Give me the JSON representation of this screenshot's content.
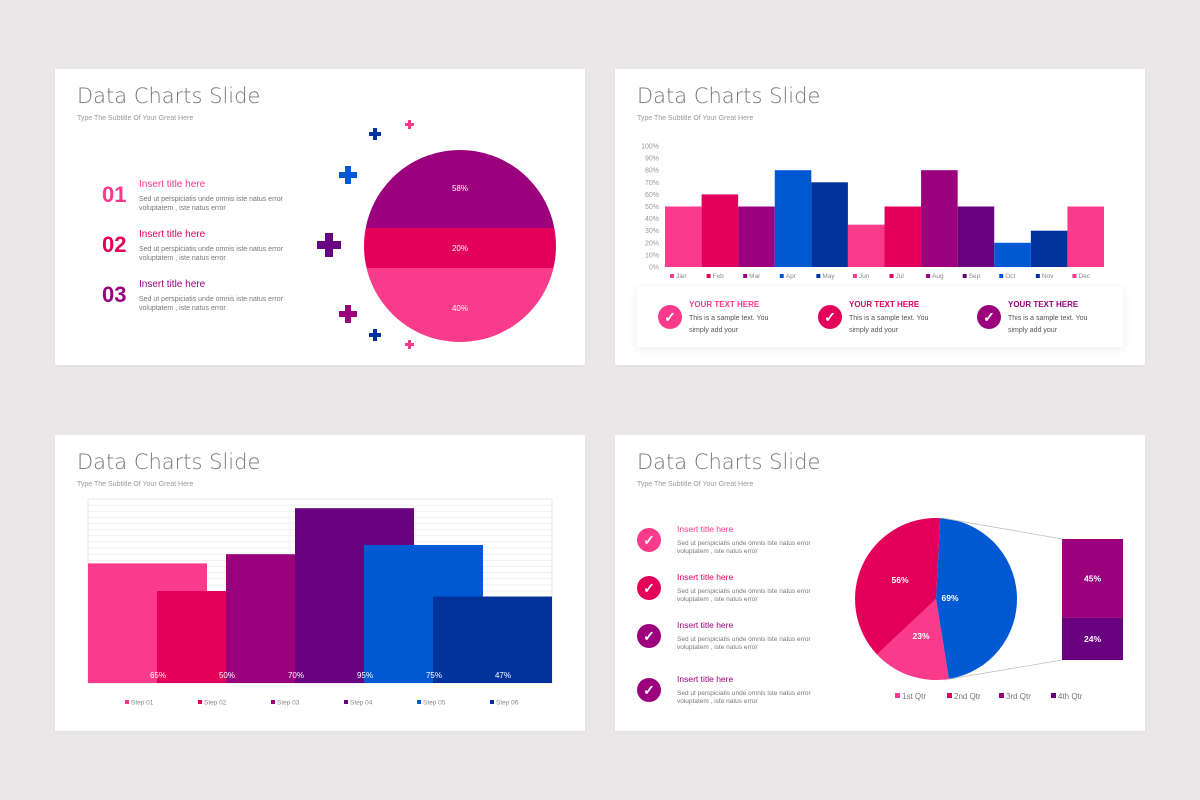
{
  "colors": {
    "pink": "#fa3a8a",
    "red": "#e2005a",
    "purple": "#9b007d",
    "darkpurple": "#68007f",
    "blue": "#0059d2",
    "navy": "#00339c"
  },
  "slides": [
    {
      "title": "Data Charts Slide",
      "subtitle": "Type The Subtitle Of Your Great Here",
      "items": [
        {
          "num": "01",
          "title": "Insert title here",
          "desc": "Sed ut perspiciatis unde omnis iste natus error voluptatem , iste natus error"
        },
        {
          "num": "02",
          "title": "Insert title here",
          "desc": "Sed ut perspiciatis unde omnis iste natus error voluptatem , iste natus error"
        },
        {
          "num": "03",
          "title": "Insert title here",
          "desc": "Sed ut perspiciatis unde omnis iste natus error voluptatem , iste natus error"
        }
      ],
      "decor_icons": [
        "plus-icon"
      ]
    },
    {
      "title": "Data Charts Slide",
      "subtitle": "Type The Subtitle Of Your Great Here",
      "cards": [
        {
          "title": "YOUR TEXT HERE",
          "text": "This is a sample text. You simply add your"
        },
        {
          "title": "YOUR TEXT HERE",
          "text": "This is a sample text. You simply add your"
        },
        {
          "title": "YOUR TEXT HERE",
          "text": "This is a sample text. You simply add your"
        }
      ],
      "card_icon": "check-circle-icon"
    },
    {
      "title": "Data Charts Slide",
      "subtitle": "Type The Subtitle Of Your Great Here"
    },
    {
      "title": "Data Charts Slide",
      "subtitle": "Type The Subtitle Of Your Great Here",
      "items": [
        {
          "title": "Insert title here",
          "desc": "Sed ut perspiciatis unde omnis iste natus error voluptatem , iste natus error"
        },
        {
          "title": "Insert title here",
          "desc": "Sed ut perspiciatis unde omnis iste natus error voluptatem , iste natus error"
        },
        {
          "title": "Insert title here",
          "desc": "Sed ut perspiciatis unde omnis iste natus error voluptatem , iste natus error"
        },
        {
          "title": "Insert title here",
          "desc": "Sed ut perspiciatis unde omnis iste natus error voluptatem , iste natus error"
        }
      ]
    }
  ],
  "chart_data": [
    {
      "type": "pie",
      "variant": "horizontal-band circle",
      "labels": [
        "58%",
        "20%",
        "40%"
      ],
      "values": [
        58,
        20,
        40
      ],
      "colors": [
        "#9b007d",
        "#e2005a",
        "#fa3a8a"
      ]
    },
    {
      "type": "bar",
      "categories": [
        "Jan",
        "Feb",
        "Mar",
        "Apr",
        "May",
        "Jun",
        "Jul",
        "Aug",
        "Sep",
        "Oct",
        "Nov",
        "Dec"
      ],
      "values": [
        50,
        60,
        50,
        80,
        70,
        35,
        50,
        80,
        50,
        20,
        30,
        50
      ],
      "colors": [
        "#fa3a8a",
        "#e2005a",
        "#9b007d",
        "#0059d2",
        "#00339c",
        "#fa3a8a",
        "#e2005a",
        "#9b007d",
        "#68007f",
        "#0059d2",
        "#00339c",
        "#fa3a8a"
      ],
      "yticks": [
        "0%",
        "10%",
        "20%",
        "30%",
        "40%",
        "50%",
        "60%",
        "70%",
        "80%",
        "90%",
        "100%"
      ],
      "ylim": [
        0,
        100
      ],
      "legend": "bottom"
    },
    {
      "type": "bar",
      "variant": "overlapping",
      "categories": [
        "Step 01",
        "Step 02",
        "Step 03",
        "Step 04",
        "Step 05",
        "Step 06"
      ],
      "values": [
        65,
        50,
        70,
        95,
        75,
        47
      ],
      "labels": [
        "65%",
        "50%",
        "70%",
        "95%",
        "75%",
        "47%"
      ],
      "colors": [
        "#fa3a8a",
        "#e2005a",
        "#9b007d",
        "#68007f",
        "#0059d2",
        "#00339c"
      ],
      "ylim": [
        0,
        100
      ],
      "grid": true,
      "legend": "bottom"
    },
    {
      "type": "pie",
      "variant": "bar-of-pie",
      "slices": [
        {
          "label": "69%",
          "value": 69,
          "color": "#0059d2"
        },
        {
          "label": "23%",
          "value": 23,
          "color": "#fa3a8a"
        },
        {
          "label": "56%",
          "value": 56,
          "color": "#e2005a"
        }
      ],
      "bar": [
        {
          "label": "45%",
          "value": 45,
          "color": "#9b007d"
        },
        {
          "label": "24%",
          "value": 24,
          "color": "#68007f"
        }
      ],
      "legend_entries": [
        {
          "name": "1st Qtr",
          "color": "#fa3a8a"
        },
        {
          "name": "2nd Qtr",
          "color": "#e2005a"
        },
        {
          "name": "3rd Qtr",
          "color": "#9b007d"
        },
        {
          "name": "4th Qtr",
          "color": "#68007f"
        }
      ],
      "legend": "bottom"
    }
  ]
}
